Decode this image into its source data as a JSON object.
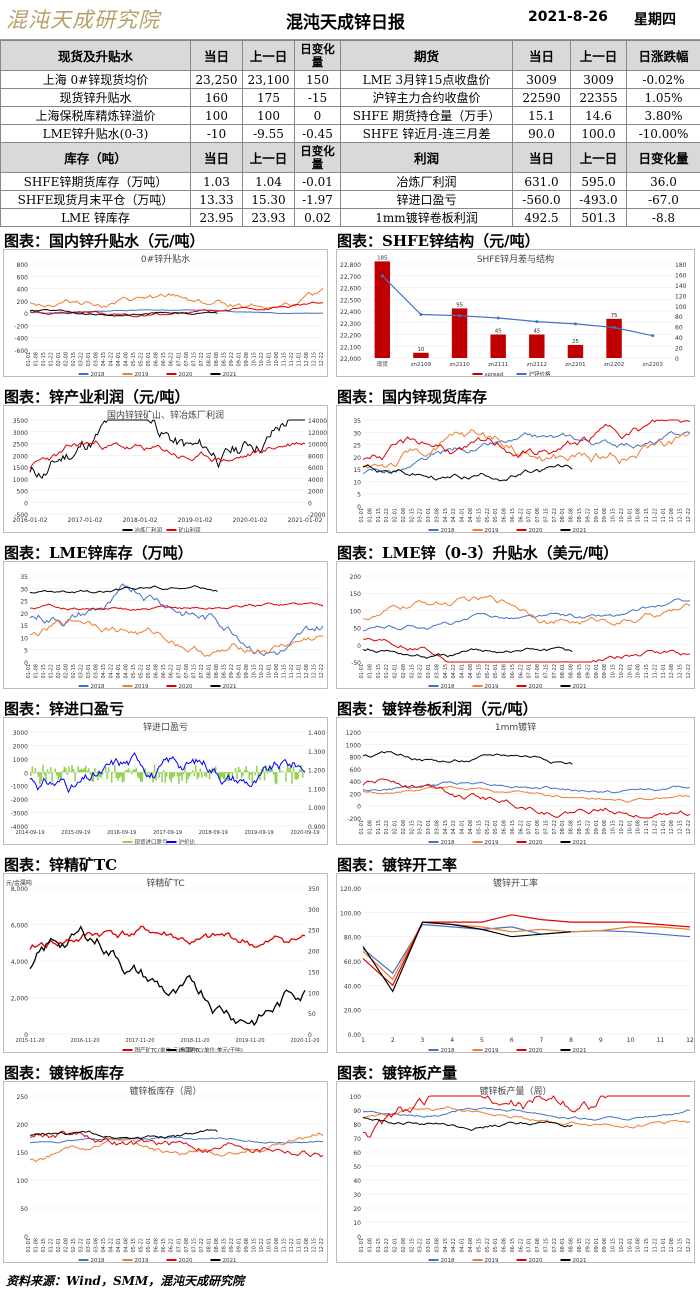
{
  "header": {
    "logo": "混沌天成研究院",
    "title": "混沌天成锌日报",
    "date": "2021-8-26",
    "weekday": "星期四"
  },
  "table1": {
    "head": [
      "现货及升贴水",
      "当日",
      "上一日",
      "日变化量",
      "期货",
      "当日",
      "上一日",
      "日涨跌幅"
    ],
    "rows": [
      [
        "上海 0#锌现货均价",
        "23,250",
        "23,100",
        "150",
        "LME 3月锌15点收盘价",
        "3009",
        "3009",
        "-0.02%"
      ],
      [
        "现货锌升贴水",
        "160",
        "175",
        "-15",
        "沪锌主力合约收盘价",
        "22590",
        "22355",
        "1.05%"
      ],
      [
        "上海保税库精炼锌溢价",
        "100",
        "100",
        "0",
        "SHFE 期货持仓量（万手）",
        "15.1",
        "14.6",
        "3.80%"
      ],
      [
        "LME锌升贴水(0-3)",
        "-10",
        "-9.55",
        "-0.45",
        "SHFE 锌近月-连三月差",
        "90.0",
        "100.0",
        "-10.00%"
      ]
    ]
  },
  "table2": {
    "head": [
      "库存（吨）",
      "当日",
      "上一日",
      "日变化量",
      "利润",
      "当日",
      "上一日",
      "日变化量"
    ],
    "rows": [
      [
        "SHFE锌期货库存（万吨）",
        "1.03",
        "1.04",
        "-0.01",
        "冶炼厂利润",
        "631.0",
        "595.0",
        "36.0"
      ],
      [
        "SHFE现货月末平仓（万吨）",
        "13.33",
        "15.30",
        "-1.97",
        "锌进口盈亏",
        "-560.0",
        "-493.0",
        "-67.0"
      ],
      [
        "LME  锌库存",
        "23.95",
        "23.93",
        "0.02",
        "1mm镀锌卷板利润",
        "492.5",
        "501.3",
        "-8.8"
      ]
    ]
  },
  "panels": [
    {
      "caption": "图表：国内锌升贴水（元/吨）",
      "title": "0#锌升贴水",
      "legend": [
        "2018",
        "2019",
        "2020",
        "2021"
      ]
    },
    {
      "caption": "图表：SHFE锌结构（元/吨）",
      "title": "SHFE锌月差与结构",
      "legend": [
        "spread",
        "沪锌价格"
      ]
    },
    {
      "caption": "图表：锌产业利润（元/吨）",
      "title": "国内锌锌矿山、锌冶炼厂利润",
      "legend": [
        "冶炼厂利润",
        "矿山利润"
      ]
    },
    {
      "caption": "图表：国内锌现货库存",
      "title": "",
      "legend": [
        "2018",
        "2019",
        "2020",
        "2021"
      ]
    },
    {
      "caption": "图表：LME锌库存（万吨）",
      "title": "",
      "legend": [
        "2018",
        "2019",
        "2020",
        "2021"
      ]
    },
    {
      "caption": "图表：LME锌（0-3）升贴水（美元/吨）",
      "title": "",
      "legend": [
        "2018",
        "2019",
        "2020",
        "2021"
      ]
    },
    {
      "caption": "图表：锌进口盈亏",
      "title": "锌进口盈亏",
      "legend": [
        "现货进口盈亏",
        "沪伦比"
      ]
    },
    {
      "caption": "图表：镀锌卷板利润（元/吨）",
      "title": "1mm镀锌",
      "legend": [
        "2018",
        "2019",
        "2020",
        "2021"
      ]
    },
    {
      "caption": "图表：锌精矿TC",
      "title": "锌精矿TC",
      "unit": "元/金属吨",
      "legend": [
        "国产矿TC(单位:元/金属吨)",
        "进口矿TC(单位:美元/干吨)"
      ]
    },
    {
      "caption": "图表：镀锌开工率",
      "title": "镀锌开工率",
      "legend": [
        "2018",
        "2019",
        "2020",
        "2021"
      ]
    },
    {
      "caption": "图表：镀锌板库存",
      "title": "镀锌板库存（周）",
      "legend": [
        "2018",
        "2019",
        "2020",
        "2021"
      ]
    },
    {
      "caption": "图表：镀锌板产量",
      "title": "镀锌板产量（周）",
      "legend": [
        "2018",
        "2019",
        "2020",
        "2021"
      ]
    }
  ],
  "colors": {
    "y2018": "#4472c4",
    "y2019": "#ed7d31",
    "y2020": "#e00000",
    "y2021": "#000000",
    "bar": "#c00000",
    "green": "#92d050",
    "blue": "#0000ff"
  },
  "chart_data": [
    {
      "type": "line",
      "title": "0#锌升贴水",
      "ylim": [
        -600,
        800
      ],
      "yticks": [
        "800",
        "600",
        "400",
        "200",
        "0",
        "-200",
        "-400",
        "-600"
      ]
    },
    {
      "type": "bar",
      "title": "SHFE锌月差与结构",
      "categories": [
        "现货",
        "zn2109",
        "zn2110",
        "zn2111",
        "zn2112",
        "zn2201",
        "zn2202",
        "zn2203"
      ],
      "series": [
        {
          "name": "spread",
          "values": [
            185,
            10,
            95,
            45,
            45,
            25,
            75,
            null
          ]
        },
        {
          "name": "沪锌价格",
          "values": [
            22700,
            22370,
            22360,
            22340,
            22310,
            22290,
            22260,
            22190
          ]
        }
      ],
      "ylim": [
        22000,
        22800
      ],
      "y2lim": [
        0,
        180
      ],
      "yticks": [
        "22,800",
        "22,700",
        "22,600",
        "22,500",
        "22,400",
        "22,300",
        "22,200",
        "22,100",
        "22,000"
      ],
      "y2ticks": [
        "180",
        "160",
        "140",
        "120",
        "100",
        "80",
        "60",
        "40",
        "20",
        "0"
      ]
    },
    {
      "type": "line",
      "title": "国内锌锌矿山、锌冶炼厂利润",
      "yticks": [
        "3500",
        "3000",
        "2500",
        "2000",
        "1500",
        "1000",
        "500",
        "0",
        "-500"
      ],
      "y2ticks": [
        "14000",
        "12000",
        "10000",
        "8000",
        "6000",
        "4000",
        "2000",
        "0",
        "-2000"
      ],
      "xticks": [
        "2016-01-02",
        "2017-01-02",
        "2018-01-02",
        "2019-01-02",
        "2020-01-02",
        "2021-01-02"
      ]
    },
    {
      "type": "line",
      "yticks": [
        "35",
        "30",
        "25",
        "20",
        "15",
        "10",
        "5",
        "0"
      ]
    },
    {
      "type": "line",
      "yticks": [
        "35",
        "30",
        "25",
        "20",
        "15",
        "10",
        "5",
        "0"
      ]
    },
    {
      "type": "line",
      "yticks": [
        "200",
        "150",
        "100",
        "50",
        "0",
        "-50"
      ]
    },
    {
      "type": "line",
      "title": "锌进口盈亏",
      "yticks": [
        "3000",
        "2000",
        "1000",
        "0",
        "-1000",
        "-2000",
        "-3000",
        "-4000"
      ],
      "y2ticks": [
        "1.400",
        "1.300",
        "1.200",
        "1.100",
        "1.000",
        "0.900"
      ],
      "xticks": [
        "2014-09-19",
        "2015-09-19",
        "2016-09-19",
        "2017-09-19",
        "2018-09-19",
        "2019-09-19",
        "2020-09-19"
      ]
    },
    {
      "type": "line",
      "title": "1mm镀锌",
      "yticks": [
        "1200",
        "1000",
        "800",
        "600",
        "400",
        "200",
        "0",
        "-200"
      ]
    },
    {
      "type": "line",
      "title": "锌精矿TC",
      "yticks": [
        "8,000",
        "6,000",
        "4,000",
        "2,000",
        "0"
      ],
      "y2ticks": [
        "350",
        "300",
        "250",
        "200",
        "150",
        "100",
        "50",
        "0"
      ],
      "xticks": [
        "2015-11-20",
        "2016-11-20",
        "2017-11-20",
        "2018-11-20",
        "2019-11-20",
        "2020-11-20"
      ]
    },
    {
      "type": "line",
      "title": "镀锌开工率",
      "yticks": [
        "120.00",
        "100.00",
        "80.00",
        "60.00",
        "40.00",
        "20.00",
        "0.00"
      ],
      "xticks": [
        "1",
        "2",
        "3",
        "4",
        "5",
        "6",
        "7",
        "8",
        "9",
        "10",
        "11",
        "12"
      ]
    },
    {
      "type": "line",
      "title": "镀锌板库存（周）",
      "yticks": [
        "250",
        "200",
        "150",
        "100",
        "50",
        "0"
      ]
    },
    {
      "type": "line",
      "title": "镀锌板产量（周）",
      "yticks": [
        "100",
        "90",
        "80",
        "70",
        "60",
        "50",
        "40",
        "30",
        "20",
        "10",
        "0"
      ]
    }
  ],
  "footer": "资料来源：Wind，SMM，混沌天成研究院"
}
